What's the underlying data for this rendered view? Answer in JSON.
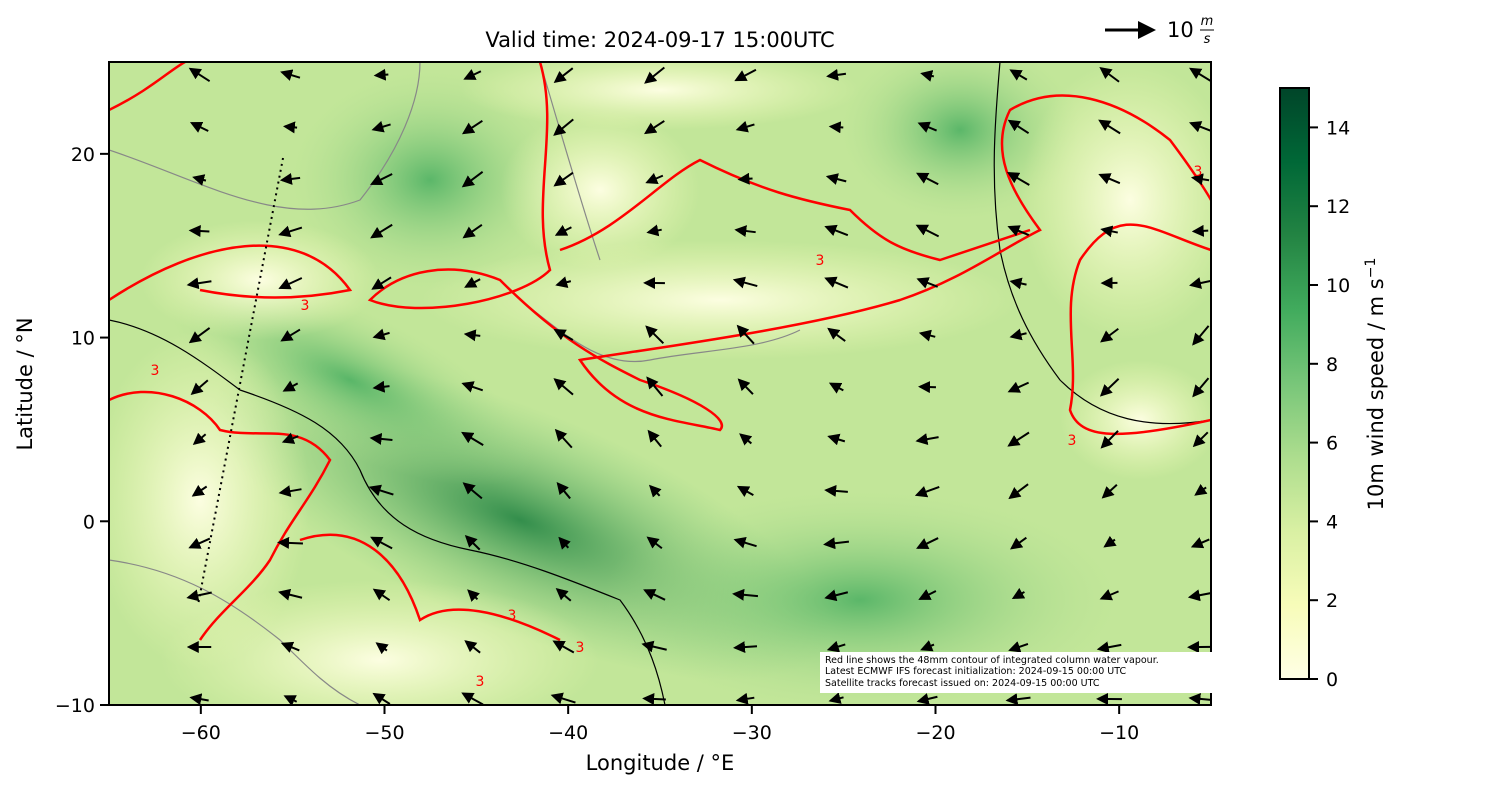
{
  "chart_data": {
    "type": "map",
    "title": "Valid time: 2024-09-17 15:00UTC",
    "x_label": "Longitude / °E",
    "y_label": "Latitude / °N",
    "xlim": [
      -65,
      -5
    ],
    "ylim": [
      -10,
      25
    ],
    "xticks": [
      {
        "value": -60,
        "label": "−60"
      },
      {
        "value": -50,
        "label": "−50"
      },
      {
        "value": -40,
        "label": "−40"
      },
      {
        "value": -30,
        "label": "−30"
      },
      {
        "value": -20,
        "label": "−20"
      },
      {
        "value": -10,
        "label": "−10"
      }
    ],
    "yticks": [
      {
        "value": -10,
        "label": "−10"
      },
      0,
      10,
      20
    ],
    "colorbar": {
      "label": "10m wind speed / m s",
      "label_exponent": "−1",
      "lim": [
        0,
        15
      ],
      "ticks": [
        0,
        2,
        4,
        6,
        8,
        10,
        12,
        14
      ],
      "colors": [
        "#ffffe5",
        "#f7fcb9",
        "#d9f0a3",
        "#addd8e",
        "#78c679",
        "#41ab5d",
        "#238443",
        "#006837",
        "#004529"
      ]
    },
    "quiver_key": {
      "value": 10,
      "unit_numerator": "m",
      "unit_denominator": "s"
    },
    "contour_label": "3",
    "notes": [
      "Red line shows the 48mm contour of integrated column water vapour.",
      "Latest ECMWF IFS forecast initialization: 2024-09-15 00:00 UTC",
      "Satellite tracks forecast issued on: 2024-09-15 00:00 UTC"
    ]
  }
}
